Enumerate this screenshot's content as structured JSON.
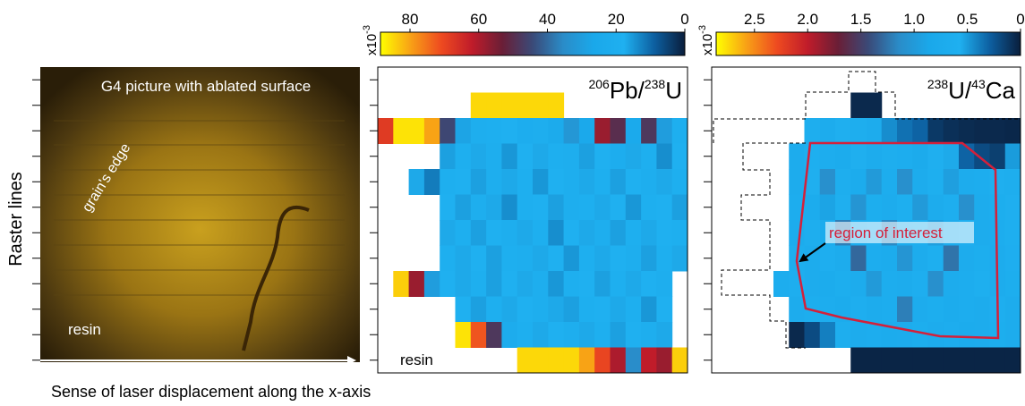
{
  "y_axis_label": "Raster lines",
  "x_axis_label": "Sense of laser displacement along the x-axis",
  "photo": {
    "title": "G4 picture with ablated surface",
    "grain_label": "grain's edge",
    "resin_label": "resin"
  },
  "chart_data": [
    {
      "type": "heatmap",
      "label": [
        "206",
        "Pb/",
        "238",
        "U"
      ],
      "annotation": "resin",
      "colormap": [
        "#0a1e3c",
        "#0d5fa0",
        "#1fb0f0",
        "#1aa8ea",
        "#2a8cc8",
        "#3a4a78",
        "#6a1e36",
        "#c01c2a",
        "#ee4a20",
        "#f8a016",
        "#ffff00"
      ],
      "clim": [
        88.6,
        0
      ],
      "cticks": [
        80,
        60,
        40,
        20,
        0
      ],
      "cscale_label": [
        "x10",
        "-3"
      ],
      "rows": [
        [
          null,
          null,
          null,
          null,
          null,
          null,
          null,
          null,
          null,
          null,
          null,
          null,
          null,
          null,
          null,
          null,
          null,
          null,
          null,
          null
        ],
        [
          null,
          null,
          null,
          null,
          null,
          null,
          85,
          85,
          85,
          85,
          85,
          85,
          null,
          null,
          null,
          null,
          null,
          null,
          null,
          null
        ],
        [
          68,
          86,
          86,
          80,
          45,
          28,
          20,
          19,
          18,
          21,
          20,
          23,
          32,
          25,
          58,
          50,
          24,
          48,
          30,
          19
        ],
        [
          null,
          null,
          null,
          null,
          16,
          19,
          17,
          20,
          15,
          18,
          17,
          19,
          20,
          16,
          18,
          21,
          17,
          19,
          14,
          18
        ],
        [
          null,
          null,
          17,
          12,
          19,
          18,
          16,
          20,
          17,
          19,
          15,
          18,
          20,
          17,
          19,
          16,
          18,
          20,
          17,
          19
        ],
        [
          null,
          null,
          null,
          null,
          18,
          16,
          20,
          17,
          14,
          19,
          18,
          16,
          20,
          19,
          17,
          18,
          15,
          19,
          18,
          16
        ],
        [
          null,
          null,
          null,
          null,
          17,
          19,
          16,
          18,
          20,
          17,
          19,
          14,
          18,
          17,
          20,
          16,
          19,
          17,
          18,
          19
        ],
        [
          null,
          null,
          null,
          null,
          19,
          17,
          18,
          16,
          19,
          20,
          17,
          18,
          15,
          19,
          17,
          18,
          20,
          16,
          19,
          17
        ],
        [
          null,
          84,
          58,
          30,
          18,
          17,
          19,
          16,
          18,
          17,
          20,
          15,
          19,
          18,
          16,
          19,
          17,
          18,
          20,
          null
        ],
        [
          null,
          null,
          null,
          null,
          null,
          18,
          16,
          19,
          17,
          18,
          20,
          17,
          16,
          19,
          18,
          17,
          19,
          15,
          18,
          null
        ],
        [
          null,
          null,
          null,
          null,
          null,
          86,
          72,
          48,
          22,
          19,
          17,
          18,
          20,
          17,
          19,
          16,
          18,
          20,
          17,
          null
        ],
        [
          null,
          null,
          null,
          null,
          null,
          null,
          null,
          null,
          null,
          85,
          85,
          85,
          85,
          80,
          70,
          60,
          35,
          62,
          58,
          84
        ]
      ]
    },
    {
      "type": "heatmap",
      "label": [
        "238",
        "U/",
        "43",
        "Ca"
      ],
      "annotation": "region of interest",
      "colormap": [
        "#0a1e3c",
        "#0d5fa0",
        "#1fb0f0",
        "#1aa8ea",
        "#2a8cc8",
        "#3a4a78",
        "#6a1e36",
        "#c01c2a",
        "#ee4a20",
        "#f8a016",
        "#ffff00"
      ],
      "clim": [
        2.86,
        0
      ],
      "cticks": [
        2.5,
        {
          "value": 2,
          "label": "2.0"
        },
        1.5,
        {
          "value": 1,
          "label": "1.0"
        },
        0.5,
        0
      ],
      "cscale_label": [
        "x10",
        "-3"
      ],
      "rows": [
        [
          null,
          null,
          null,
          null,
          null,
          null,
          null,
          null,
          null,
          null,
          null,
          null,
          null,
          null,
          null,
          null,
          null,
          null,
          null,
          null
        ],
        [
          null,
          null,
          null,
          null,
          null,
          null,
          null,
          null,
          null,
          0.05,
          0.05,
          null,
          null,
          null,
          null,
          null,
          null,
          null,
          null,
          null
        ],
        [
          null,
          null,
          null,
          null,
          null,
          null,
          0.65,
          0.7,
          0.6,
          0.65,
          0.7,
          0.45,
          0.35,
          0.3,
          0.12,
          0.08,
          0.06,
          0.05,
          0.05,
          0.04
        ],
        [
          null,
          null,
          null,
          null,
          null,
          0.7,
          0.62,
          0.68,
          0.72,
          0.6,
          0.7,
          0.65,
          0.68,
          0.75,
          0.6,
          0.55,
          0.3,
          0.2,
          0.15,
          0.5
        ],
        [
          null,
          null,
          null,
          null,
          null,
          0.7,
          0.6,
          1.1,
          0.65,
          0.72,
          1.0,
          0.68,
          1.1,
          0.7,
          0.62,
          0.95,
          0.7,
          0.68,
          0.6,
          0.65
        ],
        [
          null,
          null,
          null,
          null,
          null,
          0.68,
          0.72,
          0.9,
          0.6,
          1.05,
          0.66,
          0.7,
          0.62,
          1.0,
          0.7,
          0.64,
          1.1,
          0.7,
          0.66,
          0.6
        ],
        [
          null,
          null,
          null,
          null,
          null,
          0.72,
          0.65,
          0.7,
          1.2,
          0.68,
          0.62,
          1.15,
          0.7,
          0.66,
          0.95,
          0.7,
          0.64,
          0.7,
          0.68,
          0.62
        ],
        [
          null,
          null,
          null,
          null,
          null,
          0.66,
          0.7,
          0.64,
          0.7,
          1.3,
          0.68,
          0.72,
          1.05,
          0.7,
          0.62,
          1.25,
          0.7,
          0.66,
          0.7,
          0.64
        ],
        [
          null,
          null,
          null,
          null,
          0.68,
          0.64,
          0.7,
          0.72,
          0.66,
          0.7,
          1.0,
          0.68,
          0.7,
          0.64,
          1.1,
          0.7,
          0.68,
          0.62,
          0.7,
          0.66
        ],
        [
          null,
          null,
          null,
          null,
          null,
          0.7,
          0.66,
          0.68,
          0.72,
          0.64,
          0.7,
          0.68,
          1.2,
          0.7,
          0.66,
          0.72,
          0.68,
          0.7,
          0.64,
          0.7
        ],
        [
          null,
          null,
          null,
          null,
          null,
          0.05,
          0.2,
          0.4,
          0.65,
          0.7,
          0.68,
          0.72,
          0.7,
          0.66,
          0.7,
          0.68,
          0.72,
          0.7,
          0.66,
          0.7
        ],
        [
          null,
          null,
          null,
          null,
          null,
          null,
          null,
          null,
          null,
          0.03,
          0.03,
          0.03,
          0.03,
          0.03,
          0.03,
          0.03,
          0.03,
          0.03,
          0.03,
          0.03
        ]
      ]
    }
  ]
}
